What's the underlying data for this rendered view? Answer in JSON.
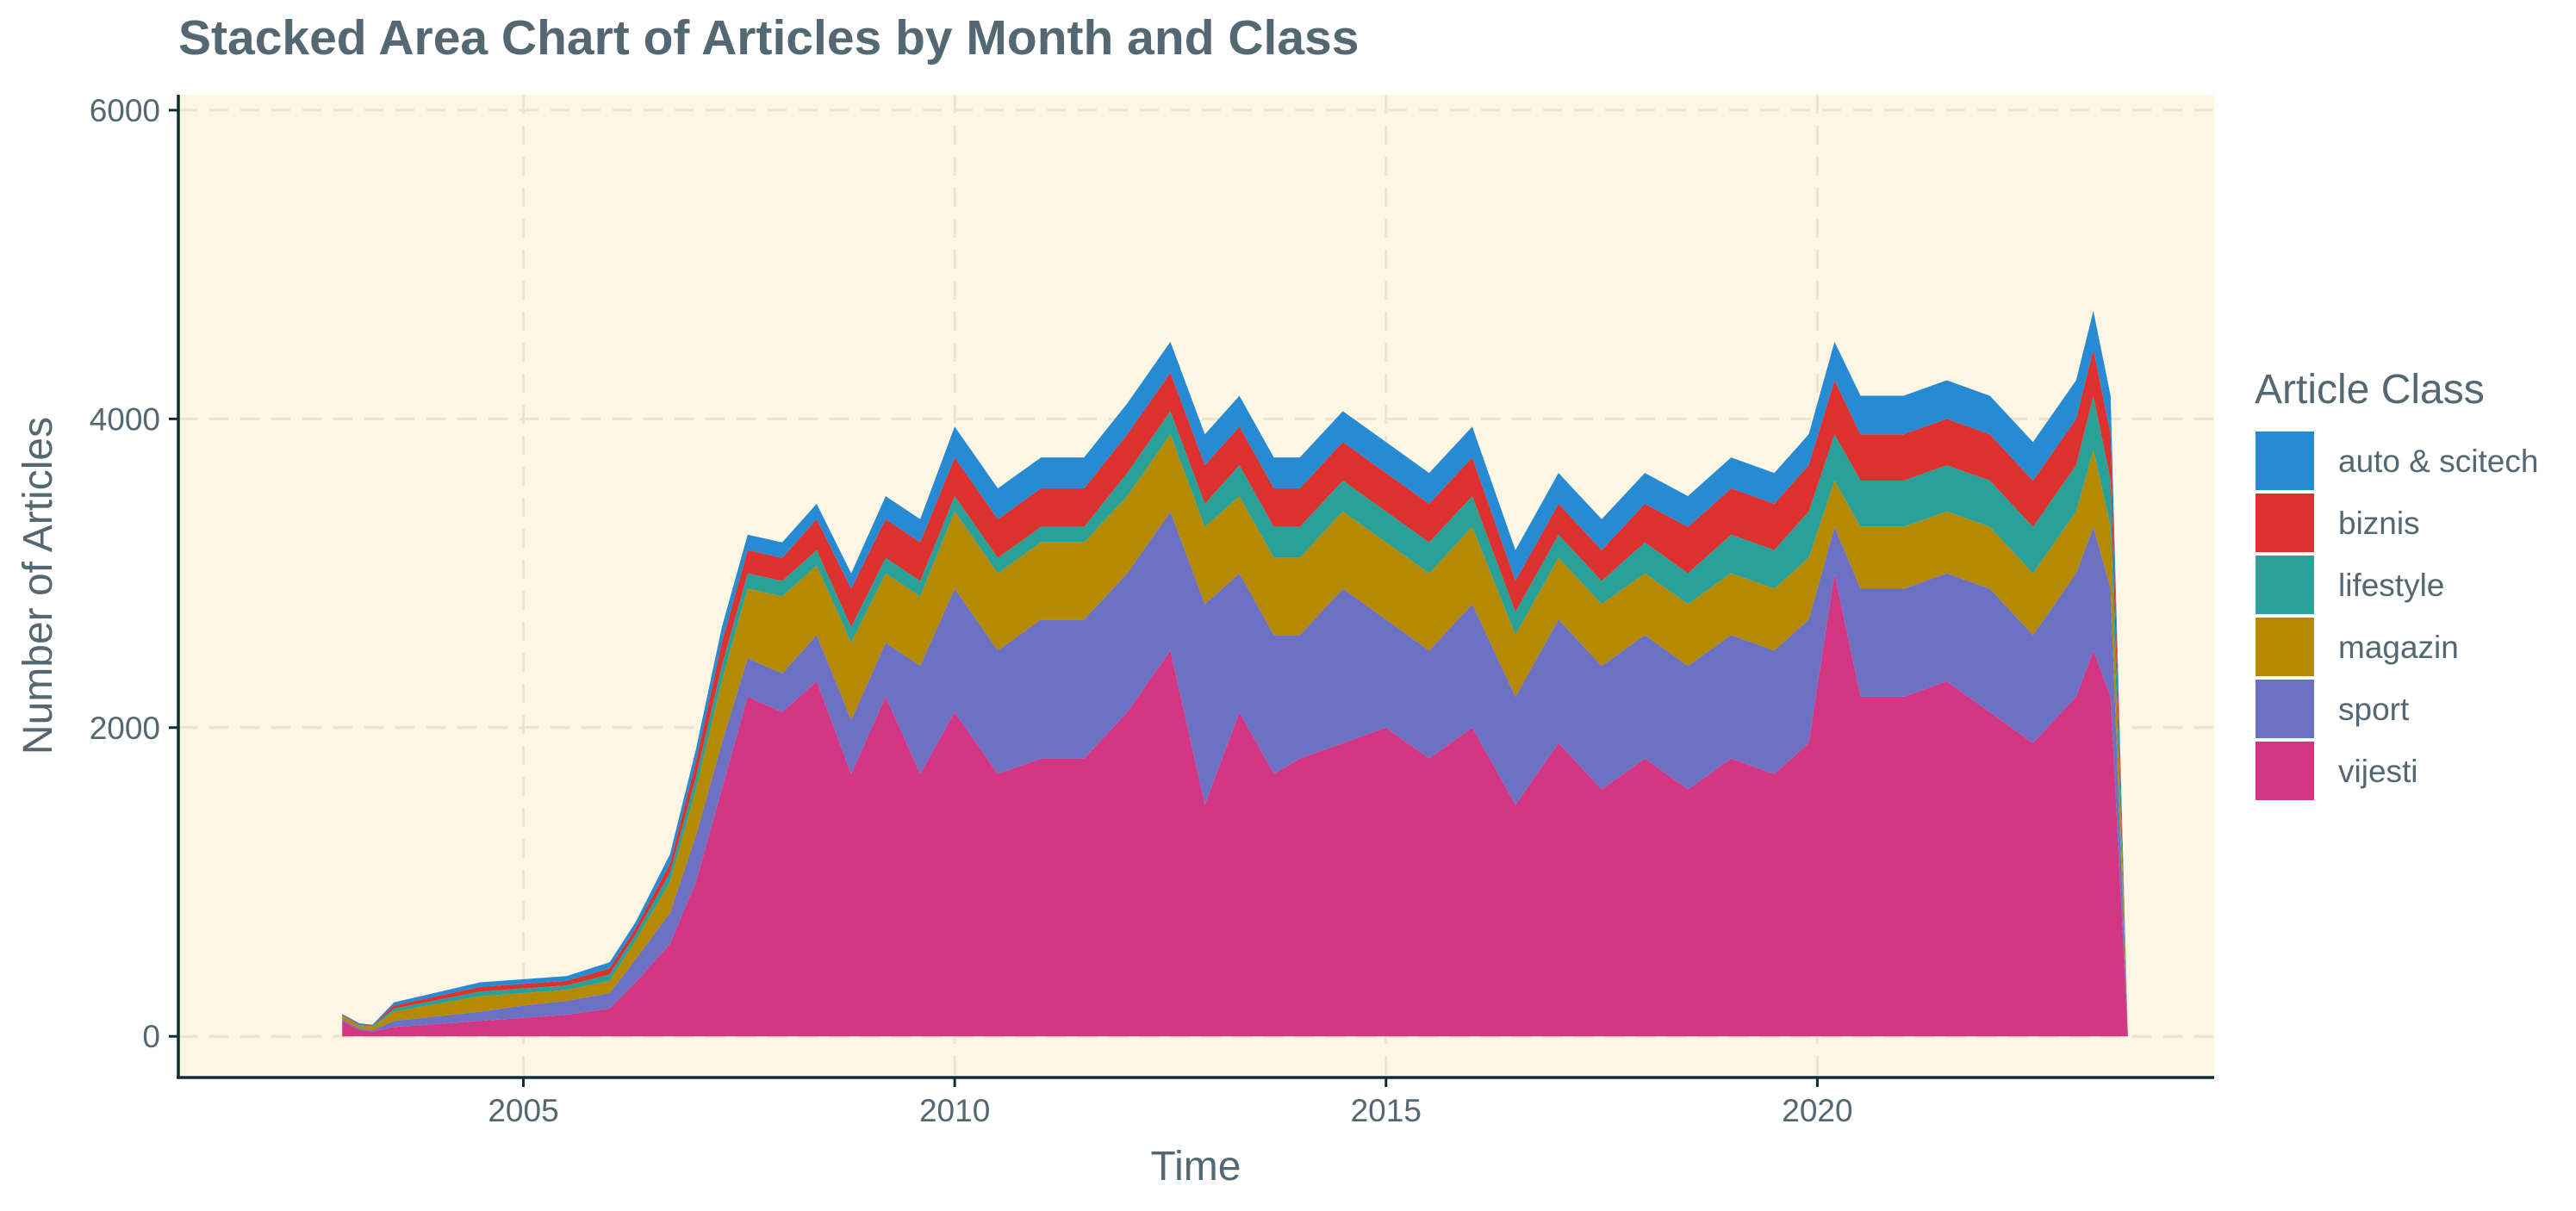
{
  "chart_data": {
    "type": "area",
    "stacked": true,
    "title": "Stacked Area Chart of Articles by Month and Class",
    "xlabel": "Time",
    "ylabel": "Number of Articles",
    "xlim": [
      2001.0,
      2024.6
    ],
    "ylim": [
      -250,
      6100
    ],
    "x_ticks": [
      2005,
      2010,
      2015,
      2020
    ],
    "y_ticks": [
      0,
      2000,
      4000,
      6000
    ],
    "grid": true,
    "legend": {
      "title": "Article Class",
      "position": "right"
    },
    "x": [
      2002.9,
      2003.1,
      2003.25,
      2003.5,
      2004.0,
      2004.5,
      2005.0,
      2005.5,
      2006.0,
      2006.3,
      2006.7,
      2007.0,
      2007.3,
      2007.6,
      2008.0,
      2008.4,
      2008.8,
      2009.2,
      2009.6,
      2010.0,
      2010.5,
      2011.0,
      2011.5,
      2012.0,
      2012.5,
      2012.9,
      2013.3,
      2013.7,
      2014.0,
      2014.5,
      2015.0,
      2015.5,
      2016.0,
      2016.5,
      2017.0,
      2017.5,
      2018.0,
      2018.5,
      2019.0,
      2019.5,
      2019.9,
      2020.2,
      2020.5,
      2021.0,
      2021.5,
      2022.0,
      2022.5,
      2023.0,
      2023.2,
      2023.4,
      2023.6
    ],
    "series": [
      {
        "name": "vijesti",
        "color": "#d33682",
        "values": [
          100,
          40,
          30,
          60,
          80,
          100,
          120,
          140,
          180,
          350,
          600,
          1000,
          1600,
          2200,
          2100,
          2300,
          1700,
          2200,
          1700,
          2100,
          1700,
          1800,
          1800,
          2100,
          2500,
          1500,
          2100,
          1700,
          1800,
          1900,
          2000,
          1800,
          2000,
          1500,
          1900,
          1600,
          1800,
          1600,
          1800,
          1700,
          1900,
          3000,
          2200,
          2200,
          2300,
          2100,
          1900,
          2200,
          2500,
          2200,
          0
        ]
      },
      {
        "name": "sport",
        "color": "#6c71c4",
        "values": [
          10,
          10,
          10,
          40,
          50,
          60,
          80,
          90,
          100,
          150,
          200,
          300,
          300,
          250,
          250,
          300,
          350,
          350,
          700,
          800,
          800,
          900,
          900,
          900,
          900,
          1300,
          900,
          900,
          800,
          1000,
          700,
          700,
          800,
          700,
          800,
          800,
          800,
          800,
          800,
          800,
          800,
          300,
          700,
          700,
          700,
          800,
          700,
          800,
          800,
          700,
          0
        ]
      },
      {
        "name": "magazin",
        "color": "#b58900",
        "values": [
          20,
          20,
          20,
          60,
          80,
          100,
          80,
          70,
          80,
          120,
          200,
          300,
          400,
          450,
          500,
          450,
          500,
          450,
          450,
          500,
          500,
          500,
          500,
          500,
          500,
          500,
          500,
          500,
          500,
          500,
          500,
          500,
          500,
          400,
          400,
          400,
          400,
          400,
          400,
          400,
          400,
          300,
          400,
          400,
          400,
          400,
          400,
          400,
          500,
          400,
          0
        ]
      },
      {
        "name": "lifestyle",
        "color": "#2aa198",
        "values": [
          5,
          5,
          5,
          20,
          25,
          30,
          30,
          30,
          40,
          40,
          60,
          80,
          100,
          100,
          100,
          100,
          100,
          100,
          100,
          100,
          100,
          100,
          100,
          150,
          150,
          150,
          200,
          200,
          200,
          200,
          200,
          200,
          200,
          150,
          150,
          150,
          200,
          200,
          250,
          250,
          300,
          300,
          300,
          300,
          300,
          300,
          300,
          300,
          350,
          300,
          0
        ]
      },
      {
        "name": "biznis",
        "color": "#dc322f",
        "values": [
          5,
          5,
          5,
          20,
          25,
          30,
          30,
          30,
          40,
          40,
          60,
          100,
          150,
          150,
          150,
          200,
          250,
          250,
          250,
          250,
          250,
          250,
          250,
          250,
          250,
          250,
          250,
          250,
          250,
          250,
          250,
          250,
          250,
          200,
          200,
          200,
          250,
          300,
          300,
          300,
          300,
          350,
          300,
          300,
          300,
          300,
          300,
          300,
          300,
          300,
          0
        ]
      },
      {
        "name": "auto & scitech",
        "color": "#268bd2",
        "values": [
          5,
          5,
          5,
          20,
          25,
          30,
          30,
          30,
          40,
          40,
          60,
          80,
          100,
          100,
          100,
          100,
          100,
          150,
          150,
          200,
          200,
          200,
          200,
          200,
          200,
          200,
          200,
          200,
          200,
          200,
          200,
          200,
          200,
          200,
          200,
          200,
          200,
          200,
          200,
          200,
          200,
          250,
          250,
          250,
          250,
          250,
          250,
          250,
          250,
          250,
          0
        ]
      }
    ],
    "legend_order": [
      "auto & scitech",
      "biznis",
      "lifestyle",
      "magazin",
      "sport",
      "vijesti"
    ],
    "panel_background": "#fdf6e3"
  }
}
